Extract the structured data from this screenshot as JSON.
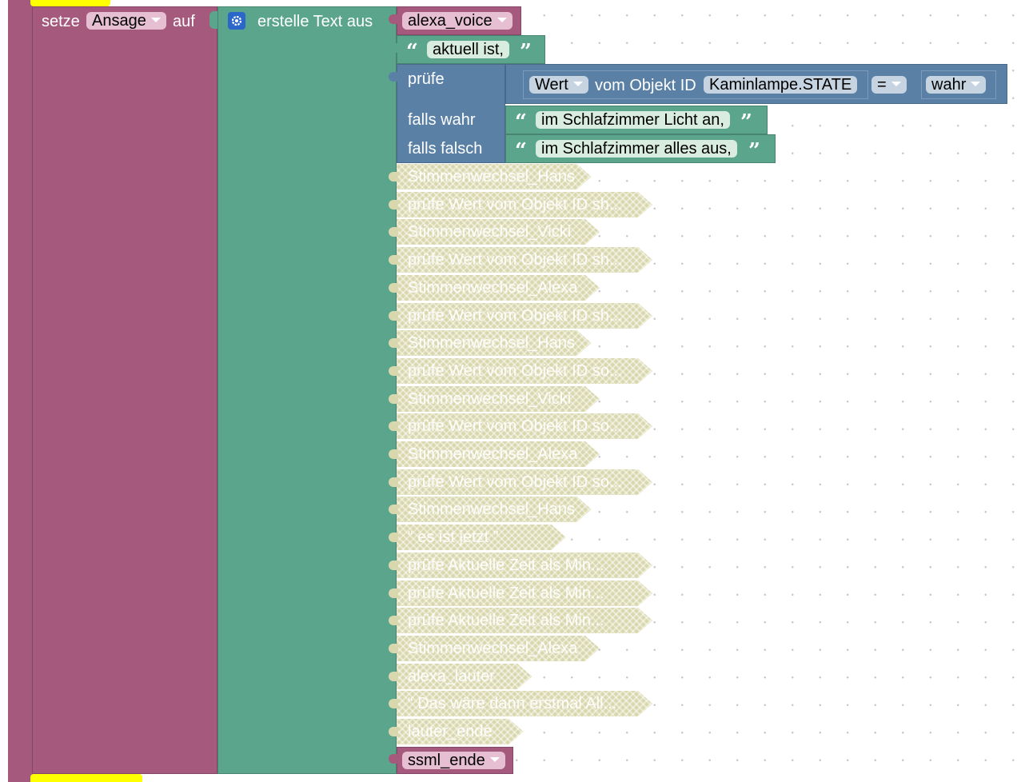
{
  "set_block": {
    "keyword": "setze",
    "variable": "Ansage",
    "to_word": "auf"
  },
  "text_join": {
    "label": "erstelle Text aus",
    "gear_icon": "gear-icon"
  },
  "inputs": {
    "alexa_voice": "alexa_voice",
    "aktuell": "aktuell ist,",
    "ternary": {
      "check_label": "prüfe",
      "if_true_label": "falls wahr",
      "if_false_label": "falls falsch",
      "value_dropdown": "Wert",
      "from_object_label": "vom Objekt ID",
      "object_id": "Kaminlampe.STATE",
      "operator": "=",
      "compare_value": "wahr",
      "true_text": "im Schlafzimmer Licht an,",
      "false_text": "im Schlafzimmer alles aus,"
    },
    "disabled_items": [
      "Stimmenwechsel_Hans",
      "prüfe Wert vom Objekt ID sh...",
      "Stimmenwechsel_Vicki",
      "prüfe Wert vom Objekt ID sh...",
      "Stimmenwechsel_Alexa",
      "prüfe Wert vom Objekt ID sh...",
      "Stimmenwechsel_Hans",
      "prüfe Wert vom Objekt ID so...",
      "Stimmenwechsel_Vicki",
      "prüfe Wert vom Objekt ID so...",
      "Stimmenwechsel_Alexa",
      "prüfe Wert vom Objekt ID so...",
      "Stimmenwechsel_Hans",
      "“ es ist jetzt ”",
      "prüfe Aktuelle Zeit als Min...",
      "prüfe Aktuelle Zeit als Min...",
      "prüfe Aktuelle Zeit als Min...",
      "Stimmenwechsel_Alexa",
      "alexa_lauter",
      "“ Das wäre dann erstmal All...",
      "lauter_ende"
    ],
    "ssml_ende": "ssml_ende"
  },
  "colors": {
    "variable": "#a5597d",
    "text": "#5ba58c",
    "logic": "#5b80a5",
    "disabled": "#d9d7ad",
    "highlight": "#ffff00"
  }
}
